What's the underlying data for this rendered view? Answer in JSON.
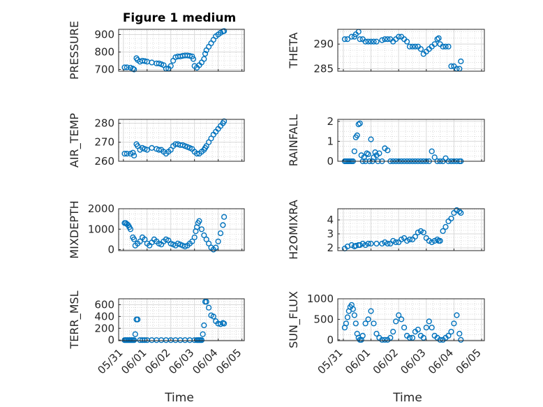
{
  "figure": {
    "title": "Figure 1 medium"
  },
  "chart_data": [
    {
      "id": "pressure",
      "type": "scatter",
      "title": "Figure 1 medium",
      "ylabel": "PRESSURE",
      "ylim": [
        690,
        930
      ],
      "yticks": [
        700,
        800,
        900
      ],
      "x": [
        0.05,
        0.15,
        0.3,
        0.4,
        0.45,
        0.55,
        0.6,
        0.7,
        0.8,
        0.9,
        1.0,
        1.2,
        1.4,
        1.5,
        1.6,
        1.7,
        1.8,
        1.9,
        2.0,
        2.1,
        2.2,
        2.3,
        2.4,
        2.5,
        2.6,
        2.7,
        2.8,
        2.9,
        2.95,
        3.0,
        3.1,
        3.2,
        3.3,
        3.4,
        3.45,
        3.5,
        3.6,
        3.7,
        3.8,
        3.9,
        4.0,
        4.1,
        4.2,
        4.25
      ],
      "values": [
        712,
        712,
        710,
        705,
        700,
        765,
        755,
        745,
        750,
        748,
        745,
        740,
        735,
        735,
        730,
        725,
        705,
        705,
        720,
        750,
        770,
        775,
        775,
        778,
        780,
        780,
        778,
        775,
        760,
        720,
        710,
        725,
        740,
        760,
        790,
        810,
        830,
        850,
        870,
        890,
        900,
        910,
        918,
        920
      ]
    },
    {
      "id": "theta",
      "type": "scatter",
      "title": "",
      "ylabel": "THETA",
      "ylim": [
        284.5,
        293
      ],
      "yticks": [
        285,
        290
      ],
      "x": [
        0.05,
        0.15,
        0.3,
        0.4,
        0.45,
        0.55,
        0.6,
        0.7,
        0.8,
        0.9,
        1.0,
        1.1,
        1.2,
        1.4,
        1.5,
        1.6,
        1.7,
        1.8,
        1.9,
        2.0,
        2.1,
        2.2,
        2.3,
        2.4,
        2.5,
        2.6,
        2.7,
        2.8,
        2.9,
        3.0,
        3.1,
        3.2,
        3.3,
        3.4,
        3.45,
        3.5,
        3.6,
        3.7,
        3.8,
        3.9,
        4.0,
        4.1,
        4.2,
        4.25
      ],
      "values": [
        291,
        291,
        291.5,
        291.5,
        292,
        292.5,
        291,
        291,
        290.5,
        290.5,
        290.5,
        290.5,
        290.5,
        290.8,
        291,
        291,
        291,
        290.5,
        291,
        291.5,
        291.5,
        291,
        290.5,
        289.5,
        289.5,
        289.5,
        289.5,
        289,
        288,
        288.5,
        289,
        289.5,
        290,
        291,
        291.2,
        290,
        289.5,
        289.5,
        289.5,
        285.5,
        285.5,
        285,
        285,
        286.5
      ]
    },
    {
      "id": "air_temp",
      "type": "scatter",
      "title": "",
      "ylabel": "AIR_TEMP",
      "ylim": [
        260,
        282
      ],
      "yticks": [
        260,
        270,
        280
      ],
      "x": [
        0.05,
        0.15,
        0.3,
        0.4,
        0.45,
        0.55,
        0.6,
        0.7,
        0.8,
        0.9,
        1.0,
        1.2,
        1.4,
        1.5,
        1.6,
        1.7,
        1.8,
        1.9,
        2.0,
        2.1,
        2.2,
        2.3,
        2.4,
        2.5,
        2.6,
        2.7,
        2.8,
        2.9,
        3.0,
        3.1,
        3.2,
        3.3,
        3.4,
        3.45,
        3.5,
        3.6,
        3.7,
        3.8,
        3.9,
        4.0,
        4.1,
        4.2,
        4.25
      ],
      "values": [
        264,
        264,
        264,
        264.5,
        263,
        269,
        268,
        266,
        267,
        266.5,
        266,
        267,
        266.5,
        266,
        266,
        265,
        264,
        265,
        266,
        268,
        269,
        269,
        268.5,
        268.5,
        268,
        267.5,
        267,
        266.5,
        265,
        264,
        264,
        265,
        266,
        267,
        268,
        270,
        272,
        274,
        275.5,
        277,
        278.5,
        280,
        281
      ]
    },
    {
      "id": "rainfall",
      "type": "scatter",
      "title": "",
      "ylabel": "RAINFALL",
      "ylim": [
        0,
        2.1
      ],
      "yticks": [
        0,
        1,
        2
      ],
      "x": [
        0.05,
        0.1,
        0.15,
        0.2,
        0.25,
        0.3,
        0.35,
        0.4,
        0.45,
        0.5,
        0.55,
        0.6,
        0.65,
        0.7,
        0.75,
        0.8,
        0.85,
        0.9,
        0.95,
        1.0,
        1.05,
        1.1,
        1.15,
        1.2,
        1.25,
        1.3,
        1.4,
        1.5,
        1.6,
        1.7,
        1.8,
        1.9,
        2.0,
        2.1,
        2.2,
        2.3,
        2.4,
        2.5,
        2.6,
        2.7,
        2.8,
        2.9,
        3.0,
        3.1,
        3.2,
        3.3,
        3.4,
        3.5,
        3.6,
        3.7,
        3.8,
        3.9,
        4.0,
        4.1,
        4.2,
        4.25
      ],
      "values": [
        0,
        0,
        0,
        0,
        0,
        0,
        0,
        0.5,
        1.2,
        1.3,
        1.85,
        1.9,
        0.3,
        0,
        0.2,
        0,
        0.4,
        0.35,
        0,
        1.1,
        0,
        0.2,
        0.45,
        0.3,
        0,
        0.4,
        0,
        0.65,
        0.55,
        0,
        0,
        0,
        0,
        0,
        0,
        0,
        0,
        0,
        0,
        0,
        0,
        0,
        0,
        0,
        0.5,
        0.2,
        0,
        0,
        0,
        0.15,
        0,
        0,
        0,
        0,
        0,
        0
      ]
    },
    {
      "id": "mixdepth",
      "type": "scatter",
      "title": "",
      "ylabel": "MIXDEPTH",
      "ylim": [
        -50,
        2000
      ],
      "yticks": [
        0,
        1000,
        2000
      ],
      "x": [
        0.05,
        0.1,
        0.15,
        0.2,
        0.25,
        0.3,
        0.4,
        0.45,
        0.5,
        0.6,
        0.7,
        0.8,
        0.9,
        1.0,
        1.1,
        1.2,
        1.3,
        1.4,
        1.5,
        1.6,
        1.7,
        1.8,
        1.9,
        2.0,
        2.1,
        2.2,
        2.3,
        2.4,
        2.5,
        2.6,
        2.7,
        2.8,
        2.9,
        3.0,
        3.05,
        3.1,
        3.15,
        3.2,
        3.3,
        3.4,
        3.5,
        3.6,
        3.7,
        3.8,
        3.9,
        4.0,
        4.1,
        4.2,
        4.25
      ],
      "values": [
        1300,
        1300,
        1250,
        1200,
        1100,
        1000,
        600,
        500,
        200,
        300,
        400,
        600,
        500,
        300,
        200,
        350,
        500,
        400,
        300,
        250,
        400,
        500,
        450,
        300,
        250,
        200,
        300,
        250,
        200,
        150,
        200,
        300,
        400,
        600,
        900,
        1100,
        1300,
        1400,
        1000,
        700,
        500,
        300,
        100,
        0,
        100,
        400,
        800,
        1200,
        1600
      ]
    },
    {
      "id": "h2omixra",
      "type": "scatter",
      "title": "",
      "ylabel": "H2OMIXRA",
      "ylim": [
        1.8,
        4.8
      ],
      "yticks": [
        2,
        3,
        4
      ],
      "x": [
        0.05,
        0.15,
        0.3,
        0.4,
        0.45,
        0.55,
        0.6,
        0.7,
        0.8,
        0.9,
        1.0,
        1.2,
        1.4,
        1.5,
        1.6,
        1.7,
        1.8,
        1.9,
        2.0,
        2.1,
        2.2,
        2.3,
        2.4,
        2.5,
        2.6,
        2.7,
        2.8,
        2.9,
        3.0,
        3.1,
        3.2,
        3.3,
        3.4,
        3.45,
        3.5,
        3.6,
        3.7,
        3.8,
        3.9,
        4.0,
        4.1,
        4.2,
        4.25
      ],
      "values": [
        1.95,
        2.1,
        2.2,
        2.1,
        2.15,
        2.2,
        2.2,
        2.3,
        2.2,
        2.3,
        2.3,
        2.3,
        2.3,
        2.4,
        2.3,
        2.3,
        2.5,
        2.4,
        2.4,
        2.6,
        2.7,
        2.5,
        2.6,
        2.6,
        2.8,
        3.1,
        3.2,
        3.1,
        2.7,
        2.5,
        2.4,
        2.5,
        2.6,
        2.5,
        2.5,
        3.2,
        3.5,
        3.9,
        4.1,
        4.5,
        4.7,
        4.6,
        4.5
      ]
    },
    {
      "id": "terr_msl",
      "type": "scatter",
      "title": "",
      "ylabel": "TERR_MSL",
      "ylim": [
        -10,
        700
      ],
      "yticks": [
        0,
        200,
        400,
        600
      ],
      "x": [
        0.05,
        0.1,
        0.15,
        0.2,
        0.25,
        0.3,
        0.35,
        0.4,
        0.45,
        0.5,
        0.55,
        0.6,
        0.7,
        0.8,
        0.9,
        1.0,
        1.2,
        1.4,
        1.6,
        1.8,
        2.0,
        2.2,
        2.4,
        2.6,
        2.8,
        3.0,
        3.1,
        3.15,
        3.2,
        3.25,
        3.3,
        3.35,
        3.4,
        3.45,
        3.5,
        3.6,
        3.7,
        3.8,
        3.9,
        4.0,
        4.1,
        4.2,
        4.25
      ],
      "values": [
        0,
        0,
        0,
        0,
        0,
        0,
        0,
        0,
        0,
        100,
        350,
        350,
        0,
        0,
        0,
        0,
        0,
        0,
        0,
        0,
        0,
        0,
        0,
        0,
        0,
        0,
        0,
        0,
        0,
        0,
        0,
        100,
        250,
        650,
        650,
        550,
        420,
        400,
        320,
        280,
        270,
        290,
        280
      ]
    },
    {
      "id": "sun_flux",
      "type": "scatter",
      "title": "",
      "ylabel": "SUN_FLUX",
      "ylim": [
        -20,
        1000
      ],
      "yticks": [
        0,
        500,
        1000
      ],
      "x": [
        0.05,
        0.1,
        0.15,
        0.2,
        0.25,
        0.3,
        0.35,
        0.4,
        0.45,
        0.5,
        0.55,
        0.6,
        0.65,
        0.7,
        0.8,
        0.9,
        1.0,
        1.1,
        1.2,
        1.3,
        1.4,
        1.5,
        1.6,
        1.7,
        1.8,
        1.9,
        2.0,
        2.1,
        2.2,
        2.3,
        2.4,
        2.5,
        2.6,
        2.7,
        2.8,
        2.9,
        3.0,
        3.1,
        3.2,
        3.3,
        3.4,
        3.5,
        3.6,
        3.7,
        3.8,
        3.9,
        4.0,
        4.1,
        4.2,
        4.25
      ],
      "values": [
        300,
        400,
        550,
        700,
        800,
        850,
        750,
        600,
        400,
        150,
        50,
        0,
        0,
        100,
        400,
        500,
        700,
        400,
        150,
        50,
        0,
        0,
        0,
        50,
        200,
        450,
        600,
        500,
        300,
        100,
        50,
        50,
        200,
        250,
        100,
        50,
        300,
        450,
        300,
        100,
        50,
        0,
        0,
        50,
        100,
        200,
        400,
        600,
        150,
        0
      ]
    }
  ],
  "xaxis": {
    "xlim": [
      -0.2,
      5.1
    ],
    "ticks": [
      "05/31",
      "06/01",
      "06/02",
      "06/03",
      "06/04",
      "06/05"
    ],
    "label": "Time"
  }
}
